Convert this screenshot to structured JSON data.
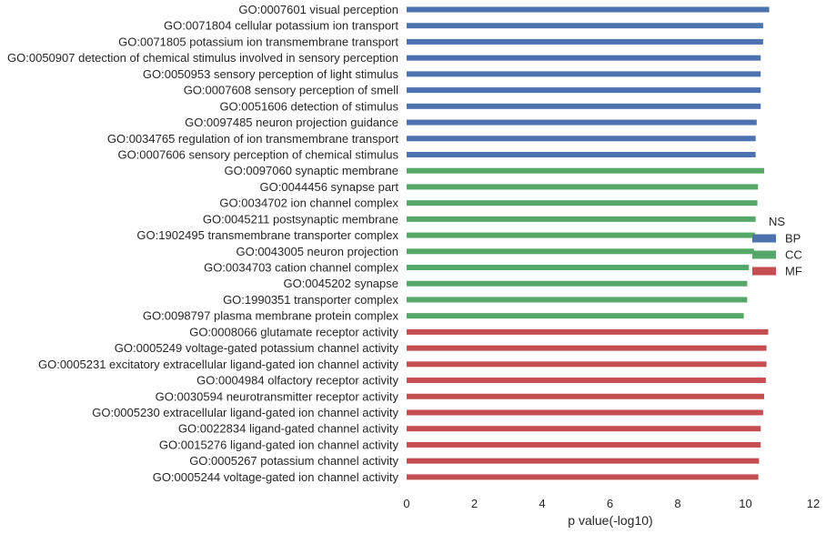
{
  "chart_data": {
    "type": "bar",
    "orientation": "horizontal",
    "xlabel": "p value(-log10)",
    "ylabel": "",
    "xlim": [
      0,
      12
    ],
    "xticks": [
      0,
      2,
      4,
      6,
      8,
      10,
      12
    ],
    "grid": false,
    "legend": {
      "title": "NS",
      "placement": "right",
      "entries": [
        {
          "name": "BP",
          "color": "#4c72b0"
        },
        {
          "name": "CC",
          "color": "#55a868"
        },
        {
          "name": "MF",
          "color": "#c44e52"
        }
      ]
    },
    "bars": [
      {
        "label": "GO:0007601 visual perception",
        "group": "BP",
        "value": 10.7
      },
      {
        "label": "GO:0071804 cellular potassium ion transport",
        "group": "BP",
        "value": 10.52
      },
      {
        "label": "GO:0071805 potassium ion transmembrane transport",
        "group": "BP",
        "value": 10.52
      },
      {
        "label": "GO:0050907 detection of chemical stimulus involved in sensory perception",
        "group": "BP",
        "value": 10.45
      },
      {
        "label": "GO:0050953 sensory perception of light stimulus",
        "group": "BP",
        "value": 10.45
      },
      {
        "label": "GO:0007608 sensory perception of smell",
        "group": "BP",
        "value": 10.45
      },
      {
        "label": "GO:0051606 detection of stimulus",
        "group": "BP",
        "value": 10.45
      },
      {
        "label": "GO:0097485 neuron projection guidance",
        "group": "BP",
        "value": 10.33
      },
      {
        "label": "GO:0034765 regulation of ion transmembrane transport",
        "group": "BP",
        "value": 10.3
      },
      {
        "label": "GO:0007606 sensory perception of chemical stimulus",
        "group": "BP",
        "value": 10.3
      },
      {
        "label": "GO:0097060 synaptic membrane",
        "group": "CC",
        "value": 10.55
      },
      {
        "label": "GO:0044456 synapse part",
        "group": "CC",
        "value": 10.37
      },
      {
        "label": "GO:0034702 ion channel complex",
        "group": "CC",
        "value": 10.35
      },
      {
        "label": "GO:0045211 postsynaptic membrane",
        "group": "CC",
        "value": 10.3
      },
      {
        "label": "GO:1902495 transmembrane transporter complex",
        "group": "CC",
        "value": 10.28
      },
      {
        "label": "GO:0043005 neuron projection",
        "group": "CC",
        "value": 10.25
      },
      {
        "label": "GO:0034703 cation channel complex",
        "group": "CC",
        "value": 10.1
      },
      {
        "label": "GO:0045202 synapse",
        "group": "CC",
        "value": 10.05
      },
      {
        "label": "GO:1990351 transporter complex",
        "group": "CC",
        "value": 10.05
      },
      {
        "label": "GO:0098797 plasma membrane protein complex",
        "group": "CC",
        "value": 9.95
      },
      {
        "label": "GO:0008066 glutamate receptor activity",
        "group": "MF",
        "value": 10.67
      },
      {
        "label": "GO:0005249 voltage-gated potassium channel activity",
        "group": "MF",
        "value": 10.62
      },
      {
        "label": "GO:0005231 excitatory extracellular ligand-gated ion channel activity",
        "group": "MF",
        "value": 10.62
      },
      {
        "label": "GO:0004984 olfactory receptor activity",
        "group": "MF",
        "value": 10.6
      },
      {
        "label": "GO:0030594 neurotransmitter receptor activity",
        "group": "MF",
        "value": 10.55
      },
      {
        "label": "GO:0005230 extracellular ligand-gated ion channel activity",
        "group": "MF",
        "value": 10.52
      },
      {
        "label": "GO:0022834 ligand-gated channel activity",
        "group": "MF",
        "value": 10.45
      },
      {
        "label": "GO:0015276 ligand-gated ion channel activity",
        "group": "MF",
        "value": 10.45
      },
      {
        "label": "GO:0005267 potassium channel activity",
        "group": "MF",
        "value": 10.4
      },
      {
        "label": "GO:0005244 voltage-gated ion channel activity",
        "group": "MF",
        "value": 10.38
      }
    ]
  }
}
